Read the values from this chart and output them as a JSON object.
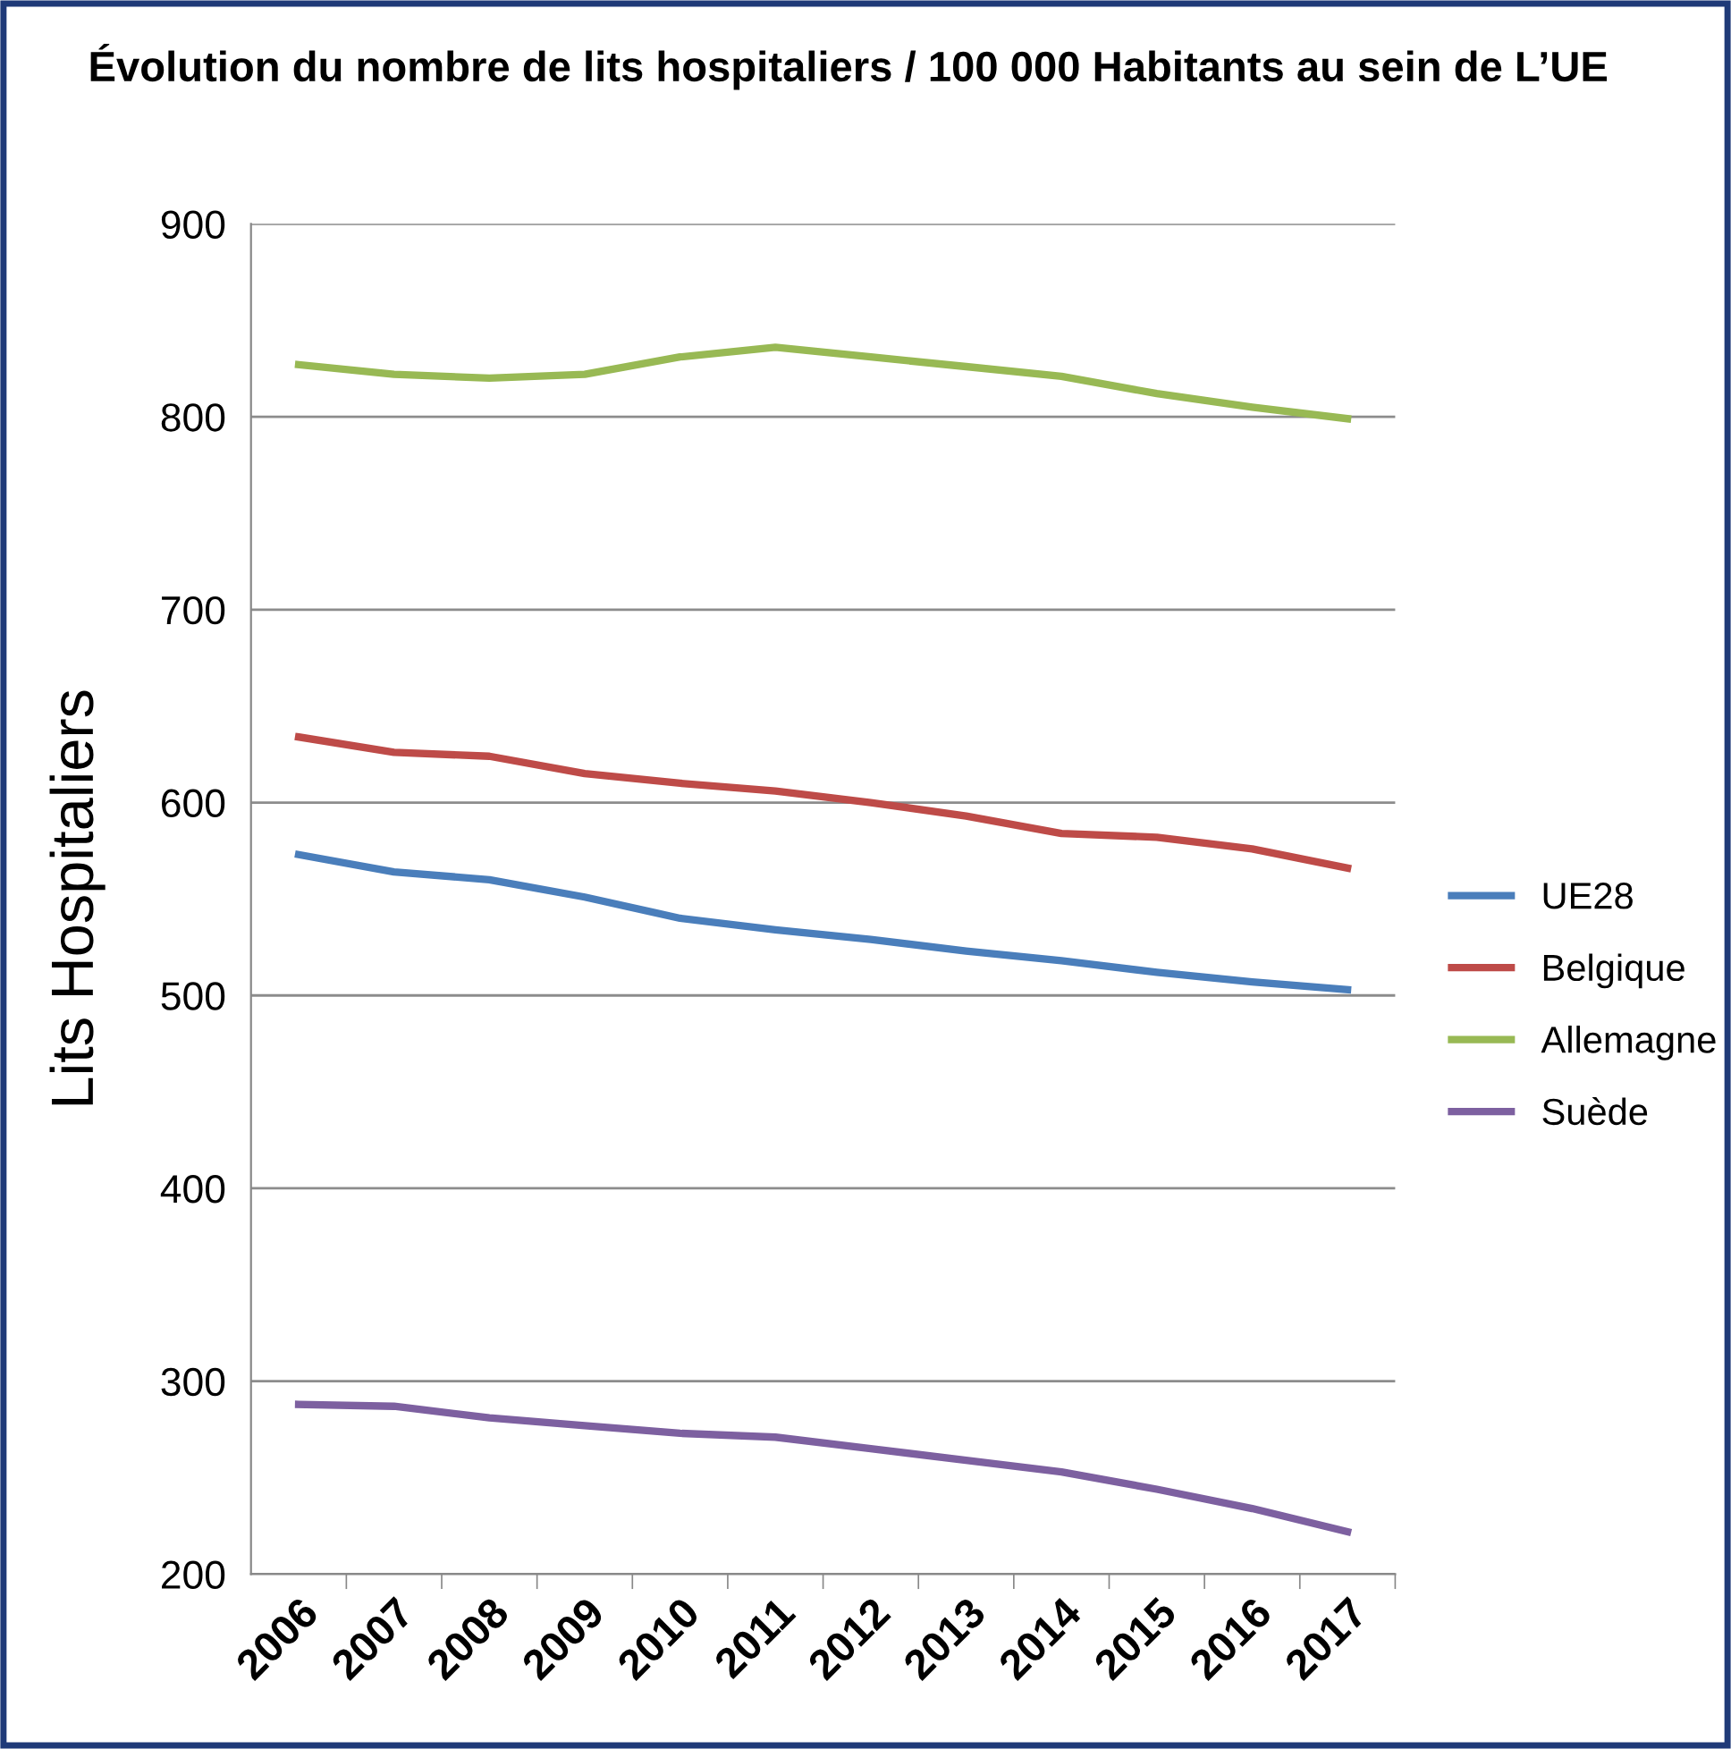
{
  "chart_data": {
    "type": "line",
    "title": "Évolution du nombre de lits hospitaliers / 100 000 Habitants au sein de L’UE",
    "ylabel": "Lits Hospitaliers",
    "categories": [
      "2006",
      "2007",
      "2008",
      "2009",
      "2010",
      "2011",
      "2012",
      "2013",
      "2014",
      "2015",
      "2016",
      "2017"
    ],
    "series": [
      {
        "name": "UE28",
        "color": "#4a7ebb",
        "values": [
          573,
          564,
          560,
          551,
          540,
          534,
          529,
          523,
          518,
          512,
          507,
          503
        ]
      },
      {
        "name": "Belgique",
        "color": "#be4b48",
        "values": [
          634,
          626,
          624,
          615,
          610,
          606,
          600,
          593,
          584,
          582,
          576,
          566
        ]
      },
      {
        "name": "Allemagne",
        "color": "#98b954",
        "values": [
          827,
          822,
          820,
          822,
          831,
          836,
          831,
          826,
          821,
          812,
          805,
          799
        ]
      },
      {
        "name": "Suède",
        "color": "#7d60a0",
        "values": [
          288,
          287,
          281,
          277,
          273,
          271,
          265,
          259,
          253,
          244,
          234,
          222
        ]
      }
    ],
    "ylim": [
      200,
      900
    ],
    "yticks": [
      200,
      300,
      400,
      500,
      600,
      700,
      800,
      900
    ],
    "grid": "y",
    "legend": "right",
    "marker": "none",
    "line_style": "solid"
  }
}
